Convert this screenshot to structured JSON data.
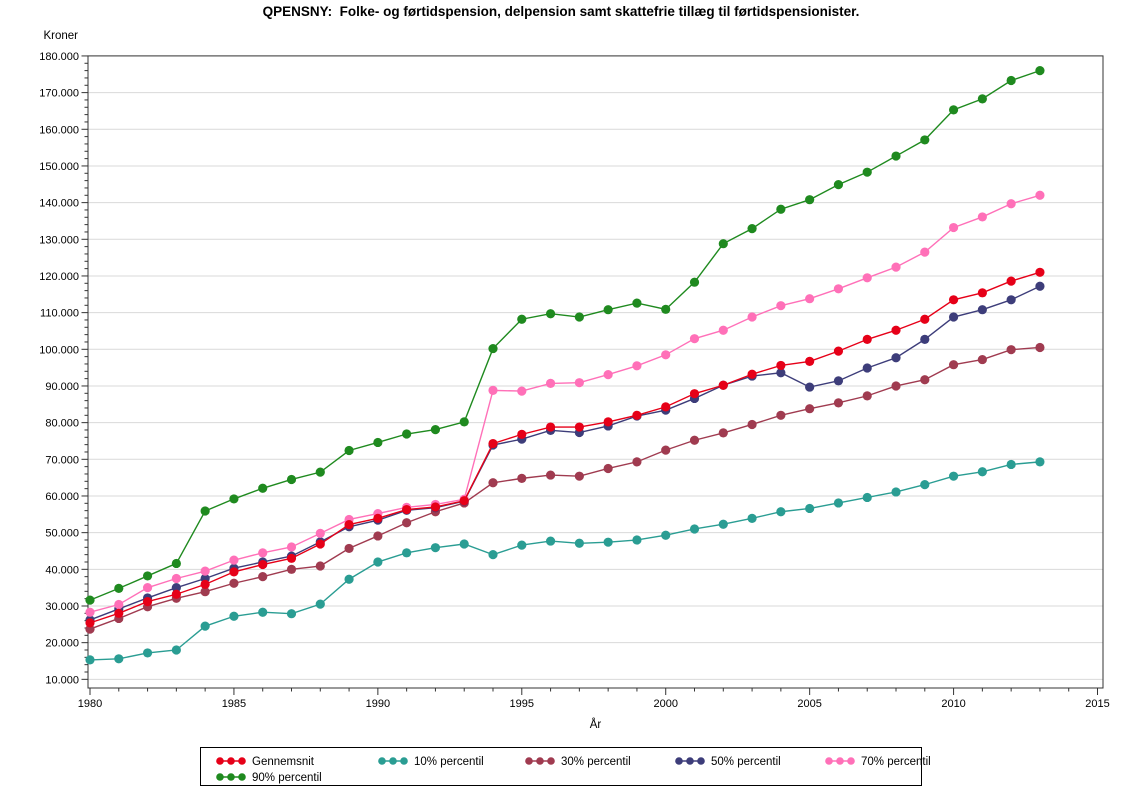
{
  "title": "QPENSNY:  Folke- og førtidspension, delpension samt skattefrie tillæg til førtidspensionister.",
  "chart_data": {
    "type": "line",
    "title": "QPENSNY:  Folke- og førtidspension, delpension samt skattefrie tillæg til førtidspensionister.",
    "xlabel": "År",
    "ylabel": "Kroner",
    "xlim": [
      1980,
      2015
    ],
    "ylim": [
      10000,
      180000
    ],
    "grid": "horizontal-major",
    "legend_position": "bottom",
    "x": [
      1980,
      1981,
      1982,
      1983,
      1984,
      1985,
      1986,
      1987,
      1988,
      1989,
      1990,
      1991,
      1992,
      1993,
      1994,
      1995,
      1996,
      1997,
      1998,
      1999,
      2000,
      2001,
      2002,
      2003,
      2004,
      2005,
      2006,
      2007,
      2008,
      2009,
      2010,
      2011,
      2012,
      2013
    ],
    "x_ticks": {
      "values": [
        1980,
        1985,
        1990,
        1995,
        2000,
        2005,
        2010,
        2015
      ],
      "labels": [
        "1980",
        "1985",
        "1990",
        "1995",
        "2000",
        "2005",
        "2010",
        "2015"
      ],
      "minor_step": 1
    },
    "y_ticks": {
      "values": [
        10000,
        20000,
        30000,
        40000,
        50000,
        60000,
        70000,
        80000,
        90000,
        100000,
        110000,
        120000,
        130000,
        140000,
        150000,
        160000,
        170000,
        180000
      ],
      "labels": [
        "10.000",
        "20.000",
        "30.000",
        "40.000",
        "50.000",
        "60.000",
        "70.000",
        "80.000",
        "90.000",
        "100.000",
        "110.000",
        "120.000",
        "130.000",
        "140.000",
        "150.000",
        "160.000",
        "170.000",
        "180.000"
      ],
      "minor_step": 2000
    },
    "series": [
      {
        "name": "Gennemsnit",
        "color": "#E60018",
        "values": [
          25400,
          28000,
          31200,
          33200,
          35900,
          39300,
          41300,
          43000,
          46900,
          52200,
          53900,
          56300,
          57000,
          58700,
          74300,
          76800,
          78800,
          78800,
          80200,
          82000,
          84300,
          87900,
          90200,
          93200,
          95600,
          96700,
          99500,
          102700,
          105200,
          108200,
          113500,
          115400,
          118600,
          121000
        ]
      },
      {
        "name": "10% percentil",
        "color": "#2A9D93",
        "values": [
          15300,
          15600,
          17200,
          18000,
          24500,
          27200,
          28300,
          27900,
          30500,
          37300,
          42000,
          44500,
          45900,
          46900,
          44000,
          46600,
          47700,
          47100,
          47400,
          48000,
          49300,
          51000,
          52300,
          53900,
          55700,
          56600,
          58100,
          59600,
          61100,
          63100,
          65400,
          66600,
          68600,
          69300
        ]
      },
      {
        "name": "30% percentil",
        "color": "#A03B50",
        "values": [
          23700,
          26600,
          29800,
          32100,
          33900,
          36200,
          38000,
          40000,
          40900,
          45700,
          49100,
          52700,
          55700,
          58100,
          63600,
          64800,
          65700,
          65400,
          67500,
          69300,
          72500,
          75200,
          77200,
          79500,
          82000,
          83800,
          85400,
          87300,
          90000,
          91700,
          95800,
          97200,
          99900,
          100500
        ]
      },
      {
        "name": "50% percentil",
        "color": "#3D3D7A",
        "values": [
          26200,
          29200,
          32200,
          35000,
          37500,
          40300,
          42000,
          43600,
          47500,
          51600,
          53400,
          56100,
          56800,
          58600,
          73900,
          75500,
          77900,
          77300,
          79100,
          81800,
          83400,
          86600,
          90200,
          92700,
          93600,
          89700,
          91400,
          94900,
          97700,
          102700,
          108800,
          110800,
          113500,
          117200
        ]
      },
      {
        "name": "70% percentil",
        "color": "#FF70B8",
        "values": [
          28300,
          30400,
          35000,
          37500,
          39500,
          42500,
          44500,
          46100,
          49800,
          53600,
          55200,
          56900,
          57700,
          59100,
          88800,
          88600,
          90700,
          90900,
          93100,
          95500,
          98500,
          102900,
          105200,
          108800,
          111900,
          113800,
          116500,
          119500,
          122400,
          126500,
          133200,
          136100,
          139700,
          142000
        ]
      },
      {
        "name": "90% percentil",
        "color": "#1F8A1F",
        "values": [
          31600,
          34800,
          38200,
          41600,
          55900,
          59200,
          62100,
          64500,
          66500,
          72400,
          74600,
          76900,
          78100,
          80200,
          100200,
          108200,
          109700,
          108800,
          110800,
          112600,
          110900,
          118300,
          128800,
          132900,
          138200,
          140800,
          144900,
          148300,
          152700,
          157100,
          165300,
          168300,
          173300,
          176000
        ]
      }
    ]
  }
}
